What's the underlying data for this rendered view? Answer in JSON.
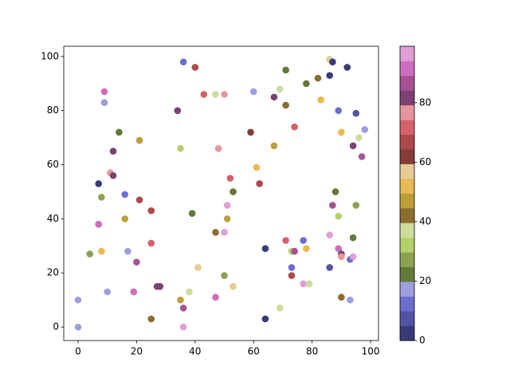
{
  "chart_data": {
    "type": "scatter",
    "x": [
      36,
      40,
      43,
      47,
      50,
      60,
      71,
      69,
      67,
      71,
      78,
      82,
      86,
      87,
      92,
      86,
      83,
      89,
      95,
      98,
      90,
      96,
      94,
      97,
      74,
      59,
      67,
      48,
      35,
      21,
      14,
      12,
      34,
      9,
      9,
      11,
      12,
      7,
      8,
      16,
      21,
      25,
      16,
      7,
      7,
      52,
      53,
      61,
      62,
      39,
      51,
      51,
      47,
      50,
      25,
      17,
      8,
      4,
      20,
      41,
      50,
      53,
      27,
      28,
      10,
      19,
      38,
      35,
      36,
      47,
      0,
      0,
      25,
      36,
      64,
      64,
      69,
      71,
      73,
      74,
      77,
      78,
      73,
      73,
      77,
      79,
      86,
      87,
      88,
      89,
      95,
      94,
      89,
      90,
      90,
      93,
      94,
      86,
      90,
      93
    ],
    "y": [
      98,
      96,
      86,
      86,
      86,
      87,
      95,
      88,
      85,
      82,
      90,
      92,
      99,
      98,
      96,
      93,
      84,
      80,
      79,
      73,
      72,
      70,
      67,
      63,
      74,
      72,
      67,
      66,
      66,
      69,
      72,
      65,
      80,
      87,
      83,
      57,
      56,
      53,
      48,
      49,
      47,
      43,
      40,
      38,
      38,
      55,
      50,
      59,
      53,
      42,
      45,
      40,
      35,
      35,
      31,
      28,
      28,
      27,
      24,
      22,
      19,
      15,
      15,
      15,
      13,
      13,
      13,
      10,
      7,
      11,
      10,
      0,
      3,
      0,
      29,
      3,
      7,
      32,
      28,
      28,
      32,
      29,
      22,
      19,
      16,
      16,
      34,
      45,
      50,
      41,
      45,
      33,
      29,
      27,
      26,
      25,
      26,
      22,
      11,
      10
    ],
    "c": [
      12,
      67,
      72,
      37,
      77,
      17,
      22,
      37,
      82,
      42,
      22,
      42,
      57,
      2,
      2,
      2,
      52,
      12,
      7,
      17,
      52,
      37,
      82,
      87,
      72,
      62,
      47,
      77,
      32,
      47,
      22,
      82,
      82,
      92,
      17,
      77,
      82,
      2,
      27,
      12,
      67,
      67,
      47,
      12,
      92,
      72,
      22,
      52,
      67,
      22,
      97,
      47,
      42,
      97,
      72,
      17,
      52,
      27,
      87,
      57,
      27,
      57,
      82,
      82,
      17,
      92,
      37,
      47,
      87,
      92,
      17,
      17,
      42,
      97,
      2,
      2,
      37,
      72,
      32,
      87,
      12,
      52,
      12,
      67,
      97,
      37,
      97,
      87,
      22,
      32,
      27,
      22,
      92,
      82,
      77,
      12,
      97,
      7,
      42,
      17
    ],
    "colormap": [
      "#393b79",
      "#5254a3",
      "#6b6ecf",
      "#9c9ede",
      "#637939",
      "#8ca252",
      "#b5cf6b",
      "#cedb9c",
      "#8c6d31",
      "#bd9e39",
      "#e7ba52",
      "#e7cb94",
      "#843c39",
      "#ad494a",
      "#d6616b",
      "#e7969c",
      "#7b4173",
      "#a55194",
      "#ce6dbd",
      "#de9ed6"
    ],
    "clim": [
      0,
      99
    ],
    "cticks": [
      0,
      20,
      40,
      60,
      80
    ],
    "xlim": [
      -4.9,
      102.7
    ],
    "ylim": [
      -5,
      103.8
    ],
    "xticks": [
      0,
      20,
      40,
      60,
      80,
      100
    ],
    "yticks": [
      0,
      20,
      40,
      60,
      80,
      100
    ]
  }
}
